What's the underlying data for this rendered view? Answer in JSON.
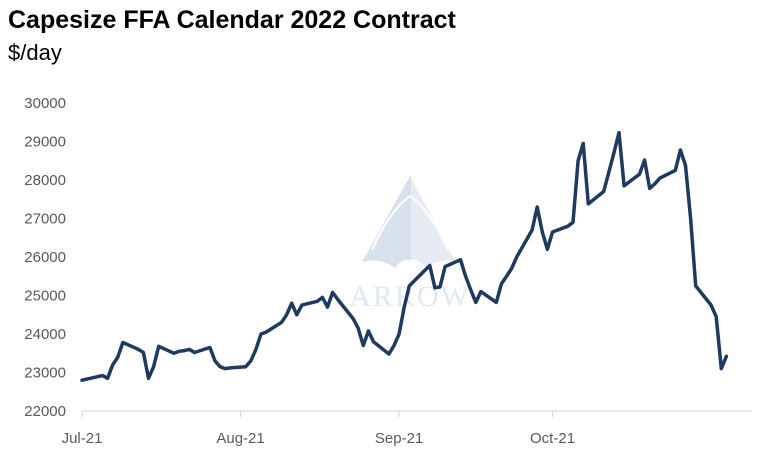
{
  "chart_data": {
    "type": "line",
    "title": "Capesize FFA Calendar 2022 Contract",
    "subtitle": "$/day",
    "xlabel": "",
    "ylabel": "",
    "ylim": [
      22000,
      30000
    ],
    "yticks": [
      22000,
      23000,
      24000,
      25000,
      26000,
      27000,
      28000,
      29000,
      30000
    ],
    "x_tick_labels": [
      "Jul-21",
      "Aug-21",
      "Sep-21",
      "Oct-21"
    ],
    "x_tick_dates": [
      "2021-07-01",
      "2021-08-01",
      "2021-09-01",
      "2021-10-01"
    ],
    "grid": false,
    "legend": "none",
    "series": [
      {
        "color": "#1f3a5f",
        "points": [
          [
            "2021-07-01",
            22800
          ],
          [
            "2021-07-05",
            22920
          ],
          [
            "2021-07-06",
            22850
          ],
          [
            "2021-07-07",
            23200
          ],
          [
            "2021-07-08",
            23400
          ],
          [
            "2021-07-09",
            23780
          ],
          [
            "2021-07-12",
            23600
          ],
          [
            "2021-07-13",
            23520
          ],
          [
            "2021-07-14",
            22850
          ],
          [
            "2021-07-15",
            23150
          ],
          [
            "2021-07-16",
            23680
          ],
          [
            "2021-07-19",
            23500
          ],
          [
            "2021-07-20",
            23550
          ],
          [
            "2021-07-21",
            23570
          ],
          [
            "2021-07-22",
            23600
          ],
          [
            "2021-07-23",
            23520
          ],
          [
            "2021-07-26",
            23650
          ],
          [
            "2021-07-27",
            23300
          ],
          [
            "2021-07-28",
            23150
          ],
          [
            "2021-07-29",
            23100
          ],
          [
            "2021-07-30",
            23120
          ],
          [
            "2021-08-02",
            23150
          ],
          [
            "2021-08-03",
            23300
          ],
          [
            "2021-08-04",
            23600
          ],
          [
            "2021-08-05",
            24000
          ],
          [
            "2021-08-06",
            24050
          ],
          [
            "2021-08-09",
            24300
          ],
          [
            "2021-08-10",
            24500
          ],
          [
            "2021-08-11",
            24800
          ],
          [
            "2021-08-12",
            24500
          ],
          [
            "2021-08-13",
            24750
          ],
          [
            "2021-08-16",
            24850
          ],
          [
            "2021-08-17",
            24950
          ],
          [
            "2021-08-18",
            24700
          ],
          [
            "2021-08-19",
            25080
          ],
          [
            "2021-08-20",
            24900
          ],
          [
            "2021-08-23",
            24400
          ],
          [
            "2021-08-24",
            24150
          ],
          [
            "2021-08-25",
            23700
          ],
          [
            "2021-08-26",
            24080
          ],
          [
            "2021-08-27",
            23800
          ],
          [
            "2021-08-30",
            23480
          ],
          [
            "2021-08-31",
            23700
          ],
          [
            "2021-09-01",
            24000
          ],
          [
            "2021-09-02",
            24700
          ],
          [
            "2021-09-03",
            25250
          ],
          [
            "2021-09-06",
            25650
          ],
          [
            "2021-09-07",
            25780
          ],
          [
            "2021-09-08",
            25200
          ],
          [
            "2021-09-09",
            25220
          ],
          [
            "2021-09-10",
            25750
          ],
          [
            "2021-09-13",
            25930
          ],
          [
            "2021-09-14",
            25500
          ],
          [
            "2021-09-15",
            25150
          ],
          [
            "2021-09-16",
            24820
          ],
          [
            "2021-09-17",
            25100
          ],
          [
            "2021-09-20",
            24820
          ],
          [
            "2021-09-21",
            25300
          ],
          [
            "2021-09-22",
            25500
          ],
          [
            "2021-09-23",
            25700
          ],
          [
            "2021-09-24",
            26000
          ],
          [
            "2021-09-27",
            26700
          ],
          [
            "2021-09-28",
            27300
          ],
          [
            "2021-09-29",
            26650
          ],
          [
            "2021-09-30",
            26200
          ],
          [
            "2021-10-01",
            26650
          ],
          [
            "2021-10-04",
            26800
          ],
          [
            "2021-10-05",
            26900
          ],
          [
            "2021-10-06",
            28500
          ],
          [
            "2021-10-07",
            28950
          ],
          [
            "2021-10-08",
            27380
          ],
          [
            "2021-10-11",
            27700
          ],
          [
            "2021-10-12",
            28200
          ],
          [
            "2021-10-13",
            28700
          ],
          [
            "2021-10-14",
            29230
          ],
          [
            "2021-10-15",
            27850
          ],
          [
            "2021-10-18",
            28150
          ],
          [
            "2021-10-19",
            28520
          ],
          [
            "2021-10-20",
            27780
          ],
          [
            "2021-10-21",
            27900
          ],
          [
            "2021-10-22",
            28050
          ],
          [
            "2021-10-25",
            28250
          ],
          [
            "2021-10-26",
            28780
          ],
          [
            "2021-10-27",
            28380
          ],
          [
            "2021-10-28",
            27000
          ],
          [
            "2021-10-29",
            25250
          ],
          [
            "2021-11-01",
            24750
          ],
          [
            "2021-11-02",
            24450
          ],
          [
            "2021-11-03",
            23100
          ],
          [
            "2021-11-04",
            23420
          ]
        ]
      }
    ],
    "watermark": "ARROW"
  }
}
